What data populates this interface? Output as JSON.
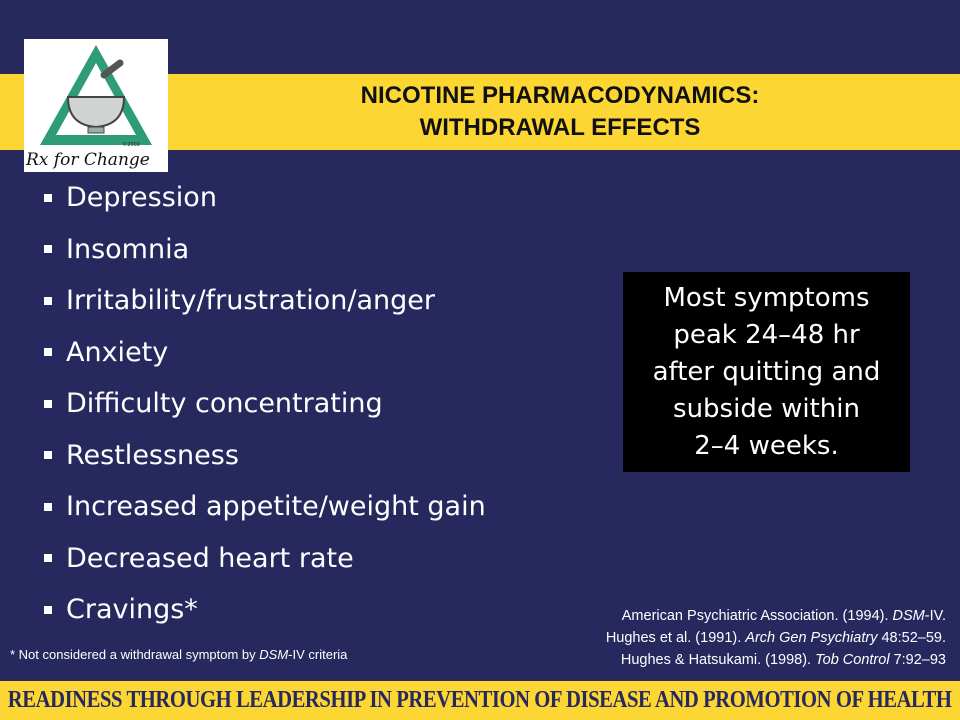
{
  "slide": {
    "title_line1": "NICOTINE PHARMACODYNAMICS:",
    "title_line2": "WITHDRAWAL EFFECTS",
    "logo": {
      "text": "Rx for Change",
      "copyright": "©2002"
    },
    "bullets": [
      "Depression",
      "Insomnia",
      "Irritability/frustration/anger",
      "Anxiety",
      "Difficulty concentrating",
      "Restlessness",
      "Increased appetite/weight gain",
      "Decreased heart rate",
      "Cravings*"
    ],
    "callout": [
      "Most symptoms",
      "peak 24–48 hr",
      "after quitting and",
      "subside within",
      "2–4 weeks."
    ],
    "footnote": {
      "prefix": "* Not considered a withdrawal symptom by ",
      "em": "DSM",
      "suffix": "-IV criteria"
    },
    "references": [
      {
        "a": "American Psychiatric Association. (1994). ",
        "em": "DSM",
        "b": "-IV."
      },
      {
        "a": "Hughes et al. (1991). ",
        "em": "Arch Gen Psychiatry",
        "b": " 48:52–59."
      },
      {
        "a": "Hughes & Hatsukami. (1998). ",
        "em": "Tob Control",
        "b": " 7:92–93"
      }
    ],
    "footer_banner": "READINESS THROUGH LEADERSHIP IN PREVENTION OF DISEASE AND PROMOTION OF HEALTH",
    "colors": {
      "background": "#27295e",
      "band": "#fcd633",
      "logo_green": "#2f9c78"
    }
  }
}
